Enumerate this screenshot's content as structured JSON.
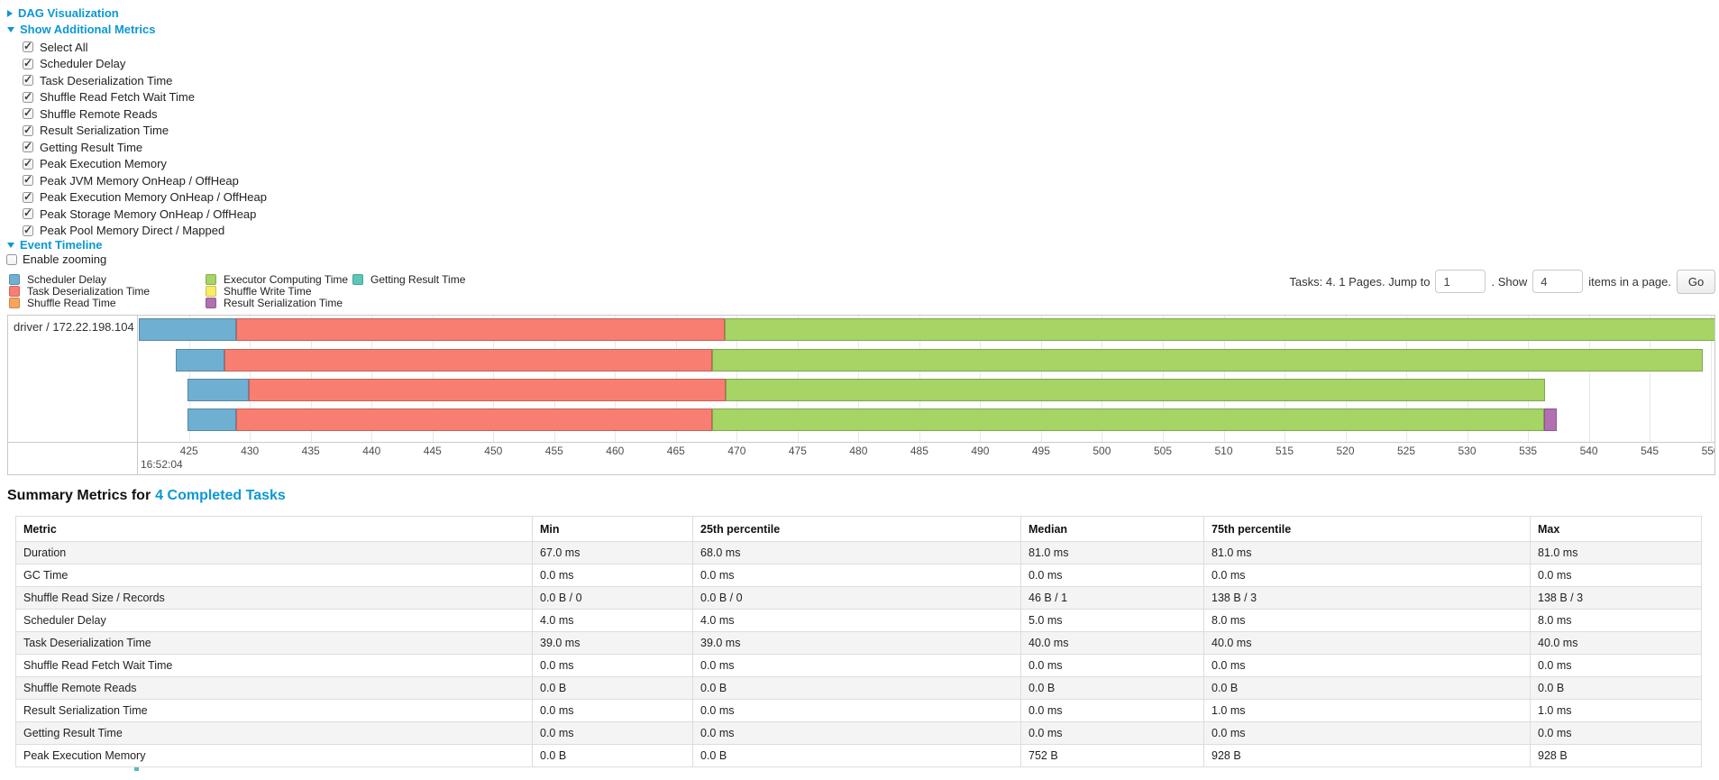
{
  "links_color": "#0a98d4",
  "sections": {
    "dag": "DAG Visualization",
    "metrics": "Show Additional Metrics",
    "event_timeline": "Event Timeline",
    "enable_zooming": "Enable zooming"
  },
  "metric_checkboxes": [
    {
      "label": "Select All",
      "checked": true
    },
    {
      "label": "Scheduler Delay",
      "checked": true
    },
    {
      "label": "Task Deserialization Time",
      "checked": true
    },
    {
      "label": "Shuffle Read Fetch Wait Time",
      "checked": true
    },
    {
      "label": "Shuffle Remote Reads",
      "checked": true
    },
    {
      "label": "Result Serialization Time",
      "checked": true
    },
    {
      "label": "Getting Result Time",
      "checked": true
    },
    {
      "label": "Peak Execution Memory",
      "checked": true
    },
    {
      "label": "Peak JVM Memory OnHeap / OffHeap",
      "checked": true
    },
    {
      "label": "Peak Execution Memory OnHeap / OffHeap",
      "checked": true
    },
    {
      "label": "Peak Storage Memory OnHeap / OffHeap",
      "checked": true
    },
    {
      "label": "Peak Pool Memory Direct / Mapped",
      "checked": true
    }
  ],
  "enable_zooming_checked": false,
  "colors": {
    "scheduler_delay": "#6FAFD2",
    "task_deserialization": "#F87E72",
    "shuffle_read": "#F9A45B",
    "executor_computing": "#A6D465",
    "shuffle_write": "#FAEC61",
    "result_serialization": "#B26FB2",
    "getting_result": "#5CC6B7"
  },
  "legend": {
    "columns": [
      [
        {
          "label": "Scheduler Delay",
          "color_key": "scheduler_delay"
        },
        {
          "label": "Task Deserialization Time",
          "color_key": "task_deserialization"
        },
        {
          "label": "Shuffle Read Time",
          "color_key": "shuffle_read"
        }
      ],
      [
        {
          "label": "Executor Computing Time",
          "color_key": "executor_computing"
        },
        {
          "label": "Shuffle Write Time",
          "color_key": "shuffle_write"
        },
        {
          "label": "Result Serialization Time",
          "color_key": "result_serialization"
        }
      ],
      [
        {
          "label": "Getting Result Time",
          "color_key": "getting_result"
        }
      ]
    ]
  },
  "pagination": {
    "tasks_text": "Tasks: 4. 1 Pages. Jump to",
    "jump_value": "1",
    "show_text": ". Show",
    "show_value": "4",
    "items_text": "items in a page.",
    "go_label": "Go"
  },
  "chart_data": {
    "type": "timeline",
    "executor": "driver / 172.22.198.104",
    "base_time_label": "16:52:04",
    "axis": {
      "min_ms": 420.8,
      "max_ms": 550.4,
      "tick_start": 425,
      "tick_end": 550,
      "tick_step": 5
    },
    "tasks": [
      {
        "segments": [
          {
            "type": "scheduler_delay",
            "start": 420.9,
            "end": 428.9
          },
          {
            "type": "task_deserialization",
            "start": 428.9,
            "end": 469.0
          },
          {
            "type": "executor_computing",
            "start": 469.0,
            "end": 550.4
          }
        ]
      },
      {
        "segments": [
          {
            "type": "scheduler_delay",
            "start": 423.9,
            "end": 427.9
          },
          {
            "type": "task_deserialization",
            "start": 427.9,
            "end": 468.0
          },
          {
            "type": "executor_computing",
            "start": 468.0,
            "end": 549.4
          }
        ]
      },
      {
        "segments": [
          {
            "type": "scheduler_delay",
            "start": 424.9,
            "end": 429.9
          },
          {
            "type": "task_deserialization",
            "start": 429.9,
            "end": 469.1
          },
          {
            "type": "executor_computing",
            "start": 469.1,
            "end": 536.4
          }
        ]
      },
      {
        "segments": [
          {
            "type": "scheduler_delay",
            "start": 424.9,
            "end": 428.9
          },
          {
            "type": "task_deserialization",
            "start": 428.9,
            "end": 468.0
          },
          {
            "type": "executor_computing",
            "start": 468.0,
            "end": 536.3
          },
          {
            "type": "result_serialization",
            "start": 536.3,
            "end": 537.4
          }
        ]
      }
    ]
  },
  "summary": {
    "title_prefix": "Summary Metrics for",
    "title_link": "4 Completed Tasks",
    "columns": [
      "Metric",
      "Min",
      "25th percentile",
      "Median",
      "75th percentile",
      "Max"
    ],
    "rows": [
      [
        "Duration",
        "67.0 ms",
        "68.0 ms",
        "81.0 ms",
        "81.0 ms",
        "81.0 ms"
      ],
      [
        "GC Time",
        "0.0 ms",
        "0.0 ms",
        "0.0 ms",
        "0.0 ms",
        "0.0 ms"
      ],
      [
        "Shuffle Read Size / Records",
        "0.0 B / 0",
        "0.0 B / 0",
        "46 B / 1",
        "138 B / 3",
        "138 B / 3"
      ],
      [
        "Scheduler Delay",
        "4.0 ms",
        "4.0 ms",
        "5.0 ms",
        "8.0 ms",
        "8.0 ms"
      ],
      [
        "Task Deserialization Time",
        "39.0 ms",
        "39.0 ms",
        "40.0 ms",
        "40.0 ms",
        "40.0 ms"
      ],
      [
        "Shuffle Read Fetch Wait Time",
        "0.0 ms",
        "0.0 ms",
        "0.0 ms",
        "0.0 ms",
        "0.0 ms"
      ],
      [
        "Shuffle Remote Reads",
        "0.0 B",
        "0.0 B",
        "0.0 B",
        "0.0 B",
        "0.0 B"
      ],
      [
        "Result Serialization Time",
        "0.0 ms",
        "0.0 ms",
        "0.0 ms",
        "1.0 ms",
        "1.0 ms"
      ],
      [
        "Getting Result Time",
        "0.0 ms",
        "0.0 ms",
        "0.0 ms",
        "0.0 ms",
        "0.0 ms"
      ],
      [
        "Peak Execution Memory",
        "0.0 B",
        "0.0 B",
        "752 B",
        "928 B",
        "928 B"
      ]
    ]
  }
}
